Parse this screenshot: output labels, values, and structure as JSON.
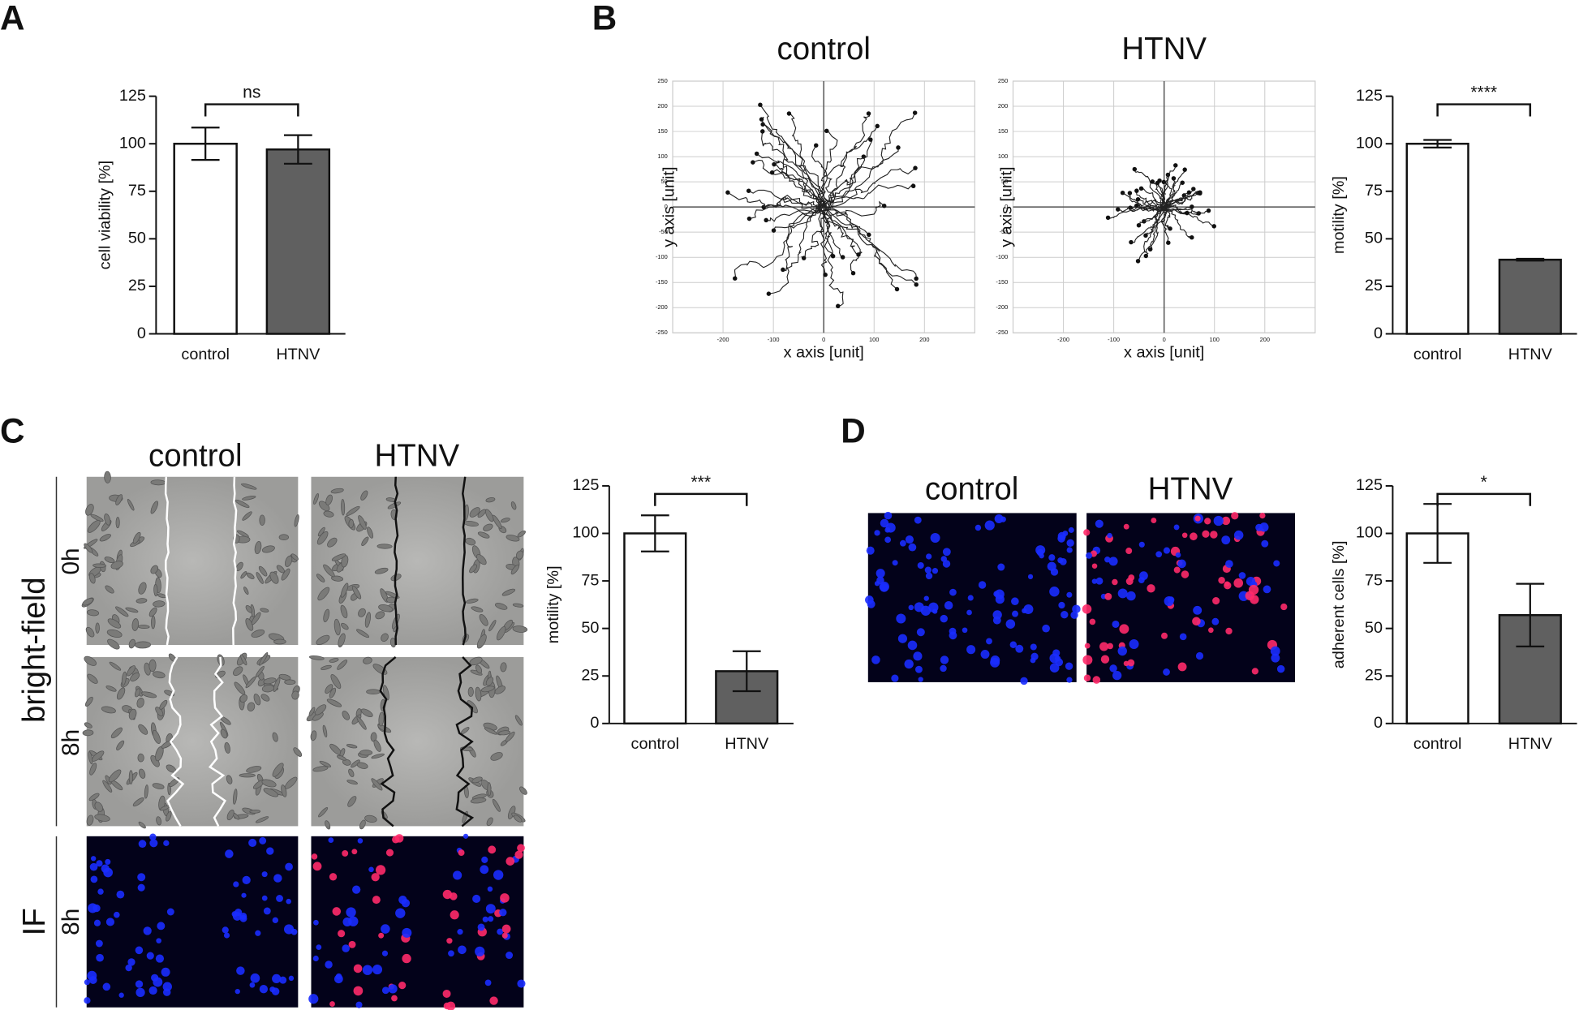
{
  "panel_labels": [
    "A",
    "B",
    "C",
    "D"
  ],
  "chart_data": [
    {
      "type": "bar",
      "categories": [
        "control",
        "HTNV"
      ],
      "values": [
        100,
        97
      ],
      "errors": [
        8.5,
        7.5
      ],
      "colors": [
        "#ffffff",
        "#606060"
      ],
      "ylabel": "cell viability [%]",
      "significance": "ns",
      "ylim": [
        0,
        125
      ],
      "yticks": [
        0,
        25,
        50,
        75,
        100,
        125
      ]
    },
    {
      "type": "trajectory",
      "title": "control",
      "xlabel": "x axis [unit]",
      "ylabel": "y axis [unit]",
      "xlim": [
        -300,
        300
      ],
      "ylim": [
        -250,
        250
      ],
      "xticks": [
        -200,
        -100,
        0,
        100,
        200
      ],
      "yticks": [
        -250,
        -200,
        -150,
        -100,
        -50,
        0,
        50,
        100,
        150,
        200,
        250
      ],
      "grid": true
    },
    {
      "type": "trajectory",
      "title": "HTNV",
      "xlabel": "x axis [unit]",
      "ylabel": "y axis [unit]",
      "xlim": [
        -300,
        300
      ],
      "ylim": [
        -250,
        250
      ],
      "xticks": [
        -200,
        -100,
        0,
        100,
        200
      ],
      "yticks": [
        -250,
        -200,
        -150,
        -100,
        -50,
        0,
        50,
        100,
        150,
        200,
        250
      ],
      "grid": true
    },
    {
      "type": "bar",
      "categories": [
        "control",
        "HTNV"
      ],
      "values": [
        100,
        39
      ],
      "errors": [
        2,
        0.5
      ],
      "colors": [
        "#ffffff",
        "#606060"
      ],
      "ylabel": "motility [%]",
      "significance": "****",
      "ylim": [
        0,
        125
      ],
      "yticks": [
        0,
        25,
        50,
        75,
        100,
        125
      ]
    },
    {
      "type": "bar",
      "categories": [
        "control",
        "HTNV"
      ],
      "values": [
        100,
        27.5
      ],
      "errors": [
        9.5,
        10.5
      ],
      "colors": [
        "#ffffff",
        "#606060"
      ],
      "ylabel": "motility [%]",
      "significance": "***",
      "ylim": [
        0,
        125
      ],
      "yticks": [
        0,
        25,
        50,
        75,
        100,
        125
      ]
    },
    {
      "type": "bar",
      "categories": [
        "control",
        "HTNV"
      ],
      "values": [
        100,
        57
      ],
      "errors": [
        15.5,
        16.5
      ],
      "colors": [
        "#ffffff",
        "#606060"
      ],
      "ylabel": "adherent cells [%]",
      "significance": "*",
      "ylim": [
        0,
        125
      ],
      "yticks": [
        0,
        25,
        50,
        75,
        100,
        125
      ]
    }
  ],
  "panel_c_images": {
    "columns": [
      "control",
      "HTNV"
    ],
    "rows": [
      "bright-field",
      "0h",
      "8h",
      "IF",
      "8h"
    ]
  },
  "panel_d_images": {
    "columns": [
      "control",
      "HTNV"
    ]
  }
}
